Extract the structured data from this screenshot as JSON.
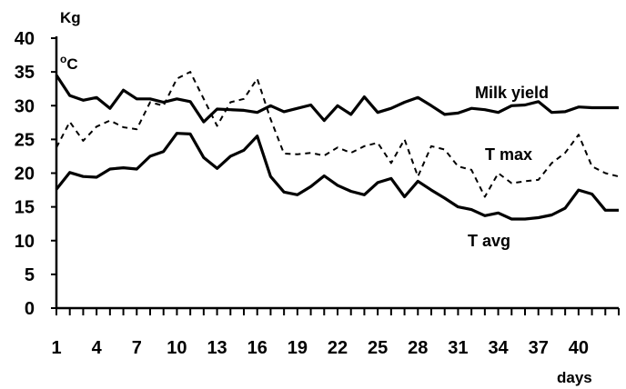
{
  "chart_data": {
    "type": "line",
    "xlabel": "days",
    "ylabel": "Kg",
    "ylabel2": "oC",
    "ylim": [
      0,
      40
    ],
    "yticks": [
      0,
      5,
      10,
      15,
      20,
      25,
      30,
      35,
      40
    ],
    "xlim": [
      1,
      43
    ],
    "xticks": [
      1,
      4,
      7,
      10,
      13,
      16,
      19,
      22,
      25,
      28,
      31,
      34,
      37,
      40
    ],
    "grid": false,
    "legend": "none",
    "x": [
      1,
      2,
      3,
      4,
      5,
      6,
      7,
      8,
      9,
      10,
      11,
      12,
      13,
      14,
      15,
      16,
      17,
      18,
      19,
      20,
      21,
      22,
      23,
      24,
      25,
      26,
      27,
      28,
      29,
      30,
      31,
      32,
      33,
      34,
      35,
      36,
      37,
      38,
      39,
      40,
      41,
      42,
      43
    ],
    "series": [
      {
        "name": "Milk yield",
        "style": "solid",
        "values": [
          34.5,
          31.5,
          30.8,
          31.2,
          29.6,
          32.3,
          31.0,
          31.0,
          30.5,
          31.0,
          30.6,
          27.6,
          29.5,
          29.4,
          29.3,
          29.0,
          30.0,
          29.1,
          29.6,
          30.1,
          27.8,
          30.0,
          28.7,
          31.3,
          29.0,
          29.6,
          30.5,
          31.2,
          30.0,
          28.7,
          28.9,
          29.6,
          29.4,
          29.0,
          30.0,
          30.1,
          30.6,
          29.0,
          29.1,
          29.8,
          29.7,
          29.7,
          29.7
        ]
      },
      {
        "name": "T max",
        "style": "dashed",
        "values": [
          23.8,
          27.6,
          24.8,
          26.9,
          27.8,
          26.8,
          26.5,
          30.5,
          30.0,
          34.0,
          35.0,
          31.0,
          27.0,
          30.5,
          31.0,
          34.0,
          28.0,
          22.9,
          22.8,
          23.0,
          22.6,
          23.8,
          23.0,
          24.0,
          24.5,
          21.5,
          25.0,
          19.5,
          24.0,
          23.5,
          21.0,
          20.5,
          16.5,
          20.0,
          18.5,
          18.8,
          19.0,
          21.5,
          23.0,
          25.7,
          21.0,
          20.0,
          19.5
        ]
      },
      {
        "name": "T avg",
        "style": "solid",
        "values": [
          17.6,
          20.1,
          19.5,
          19.4,
          20.6,
          20.8,
          20.6,
          22.5,
          23.2,
          25.9,
          25.8,
          22.3,
          20.7,
          22.5,
          23.4,
          25.5,
          19.5,
          17.2,
          16.8,
          18.0,
          19.6,
          18.2,
          17.3,
          16.8,
          18.6,
          19.2,
          16.5,
          18.8,
          17.5,
          16.3,
          15.0,
          14.6,
          13.7,
          14.1,
          13.2,
          13.2,
          13.4,
          13.8,
          14.8,
          17.5,
          16.9,
          14.5,
          14.5
        ]
      }
    ]
  }
}
